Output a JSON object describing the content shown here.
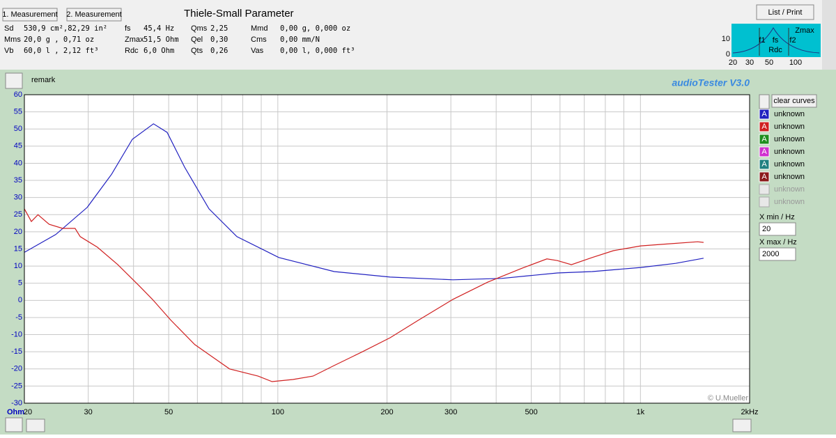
{
  "header": {
    "buttons": [
      "1. Measurement",
      "2. Measurement"
    ],
    "title": "Thiele-Small Parameter",
    "list_print": "List / Print",
    "params": [
      [
        {
          "name": "Sd",
          "value": "530,9 cm²,82,29 in²"
        },
        {
          "name": "fs",
          "value": "45,4 Hz"
        },
        {
          "name": "Qms",
          "value": "2,25"
        },
        {
          "name": "Mmd",
          "value": "0,00 g, 0,000 oz"
        }
      ],
      [
        {
          "name": "Mms",
          "value": "20,0 g , 0,71 oz"
        },
        {
          "name": "Zmax",
          "value": "51,5 Ohm"
        },
        {
          "name": "Qel",
          "value": "0,30"
        },
        {
          "name": "Cms",
          "value": "0,00 mm/N"
        }
      ],
      [
        {
          "name": "Vb",
          "value": "60,0 l , 2,12 ft³"
        },
        {
          "name": "Rdc",
          "value": "6,0 Ohm"
        },
        {
          "name": "Qts",
          "value": "0,26"
        },
        {
          "name": "Vas",
          "value": "0,00 l, 0,000 ft³"
        }
      ]
    ]
  },
  "mini_plot": {
    "y_labels": [
      "10",
      "0"
    ],
    "x_labels": [
      "20",
      "30",
      "50",
      "100"
    ],
    "markers": [
      "Zmax",
      "f1",
      "fs",
      "f2",
      "Rdc"
    ]
  },
  "remark": "remark",
  "brand": "audioTester  V3.0",
  "copyright": "© U.Mueller",
  "sidebar": {
    "clear": "clear curves",
    "icon": "A",
    "extra_curves": [
      {
        "name": "unknown",
        "color": "#1f8f1f"
      },
      {
        "name": "unknown",
        "color": "#d030d0"
      },
      {
        "name": "unknown",
        "color": "#208080"
      },
      {
        "name": "unknown",
        "color": "#8b1a1a"
      }
    ],
    "disabled_curves": [
      {
        "name": "unknown"
      },
      {
        "name": "unknown"
      }
    ],
    "xmin_label": "X min / Hz",
    "xmin": "20",
    "xmax_label": "X max / Hz",
    "xmax": "2000"
  },
  "chart_data": {
    "type": "line",
    "y_unit": "Ohm",
    "xscale": "log",
    "grid": true,
    "xlim": [
      20,
      2000
    ],
    "ylim": [
      -30,
      60
    ],
    "xticks": [
      20,
      30,
      50,
      100,
      200,
      300,
      500,
      {
        "value": 1000,
        "label": "1k"
      },
      {
        "value": 2000,
        "label": "2kHz"
      }
    ],
    "x_minor_grid": [
      40,
      60,
      70,
      80,
      90,
      400,
      600,
      700,
      800,
      900
    ],
    "yticks": [
      -30,
      -25,
      -20,
      -15,
      -10,
      -5,
      0,
      5,
      10,
      15,
      20,
      25,
      30,
      35,
      40,
      45,
      50,
      55,
      60
    ],
    "series": [
      {
        "name": "unknown",
        "color": "#2020c0",
        "x": [
          20,
          24.4,
          29.8,
          34.8,
          39.7,
          45.4,
          49.5,
          55.3,
          64.6,
          77.1,
          100.6,
          143,
          204,
          304,
          414,
          494,
          590,
          736,
          1002,
          1250,
          1493
        ],
        "values": [
          14,
          19.2,
          27.1,
          36.8,
          47,
          51.5,
          49,
          38.9,
          26.7,
          18.6,
          12.5,
          8.4,
          6.8,
          6,
          6.4,
          7.2,
          8,
          8.4,
          9.6,
          10.8,
          12.3
        ]
      },
      {
        "name": "unknown",
        "color": "#d02020",
        "x": [
          20,
          20.9,
          21.8,
          23.4,
          25.5,
          27.6,
          28.5,
          31.8,
          36.2,
          41.4,
          45.1,
          50.7,
          59,
          73.6,
          88.2,
          96.4,
          110,
          125,
          143,
          171,
          204,
          244,
          304,
          379,
          472,
          552,
          590,
          645,
          736,
          842,
          1002,
          1200,
          1437,
          1493
        ],
        "values": [
          26.7,
          23,
          25,
          22.2,
          21,
          21,
          18.6,
          15.5,
          10.4,
          4.3,
          0.3,
          -5.8,
          -12.9,
          -20,
          -22.1,
          -23.7,
          -23.1,
          -22.1,
          -19,
          -15,
          -10.9,
          -5.8,
          0.3,
          5.3,
          9.4,
          12.1,
          11.6,
          10.4,
          12.5,
          14.5,
          15.9,
          16.5,
          17.1,
          16.9
        ]
      }
    ]
  }
}
